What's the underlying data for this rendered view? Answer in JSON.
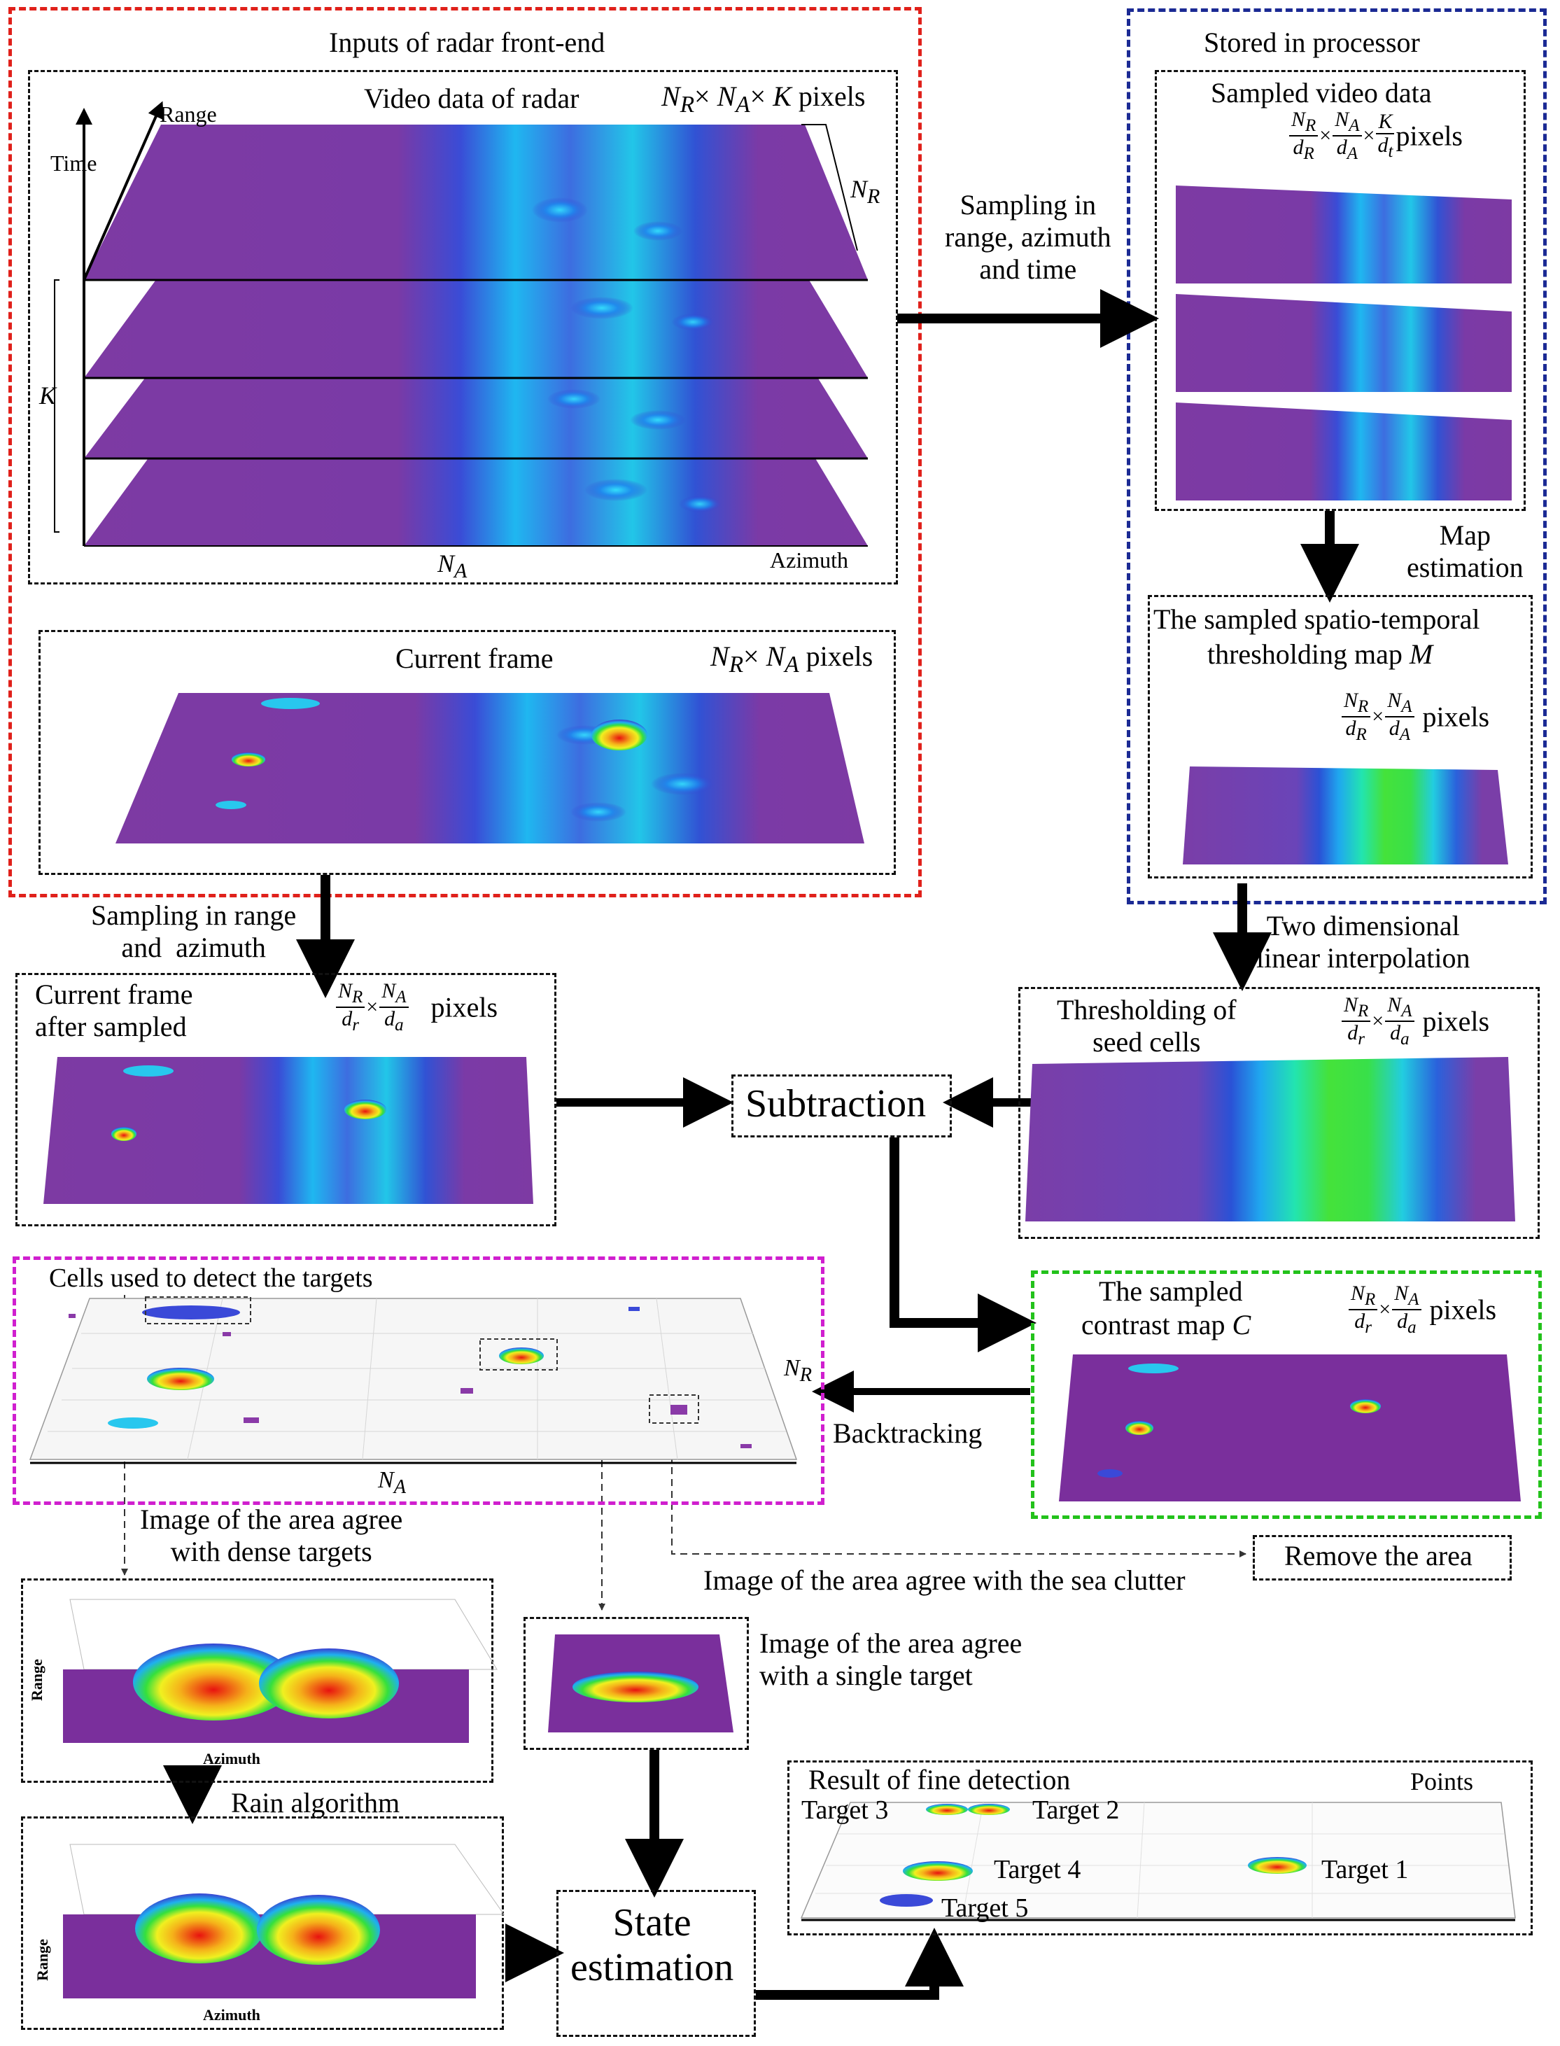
{
  "colors": {
    "red": "#e0211b",
    "blue": "#1b2a94",
    "magenta": "#d01fcf",
    "green": "#23c21b",
    "surface": "#7a2f9c"
  },
  "inputs": {
    "title": "Inputs of radar front-end",
    "video": {
      "title": "Video data of radar",
      "size": "Nₐ× Nₐ× K pixels",
      "size_r": "N",
      "size_r_sub": "R",
      "size_a": "N",
      "size_a_sub": "A",
      "size_k": "K",
      "size_unit": "pixels",
      "axis_range": "Range",
      "axis_time": "Time",
      "axis_k": "K",
      "axis_nr": "N",
      "axis_nr_sub": "R",
      "axis_na": "N",
      "axis_na_sub": "A",
      "axis_azimuth": "Azimuth"
    },
    "current": {
      "title": "Current frame",
      "size_unit": "pixels"
    }
  },
  "stored": {
    "title": "Stored in processor",
    "sampled": {
      "title": "Sampled video data",
      "f1n": "N",
      "f1ns": "R",
      "f1d": "d",
      "f1ds": "R",
      "f2n": "N",
      "f2ns": "A",
      "f2d": "d",
      "f2ds": "A",
      "f3n": "K",
      "f3d": "d",
      "f3ds": "t",
      "unit": "pixels"
    },
    "map_estimation": "Map\nestimation",
    "threshold_map": {
      "title1": "The sampled spatio-temporal",
      "title2": "thresholding map ",
      "title_sym": "M",
      "unit": "pixels"
    }
  },
  "arrows": {
    "sampling_rat": "Sampling in\nrange, azimuth\nand time",
    "sampling_ra": "Sampling in range\nand  azimuth",
    "two_dim": "Two dimensional\nlinear interpolation",
    "backtracking": "Backtracking"
  },
  "current_sampled": {
    "title": "Current frame\nafter sampled",
    "unit": "pixels"
  },
  "subtraction": "Subtraction",
  "seed": {
    "title": "Thresholding of\nseed cells",
    "unit": "pixels"
  },
  "cells": {
    "title": "Cells used to detect the targets",
    "axis_nr": "N",
    "axis_nr_sub": "R",
    "axis_na": "N",
    "axis_na_sub": "A"
  },
  "contrast": {
    "title1": "The sampled",
    "title2": "contrast map ",
    "title_sym": "C",
    "unit": "pixels"
  },
  "dense_caption": "Image of the area agree\nwith dense targets",
  "clutter_caption": "Image of the area agree with the sea clutter",
  "remove": "Remove the area",
  "single_caption": "Image of the area agree\nwith a single target",
  "dense_plot": {
    "ylabel": "Range",
    "xlabel": "Azimuth"
  },
  "rain": {
    "title": "Rain algorithm",
    "ylabel": "Range",
    "xlabel": "Azimuth"
  },
  "state": "State\nestimation",
  "result": {
    "title": "Result of fine detection",
    "legend": "Points",
    "targets": [
      "Target 1",
      "Target 2",
      "Target 3",
      "Target 4",
      "Target 5"
    ]
  }
}
